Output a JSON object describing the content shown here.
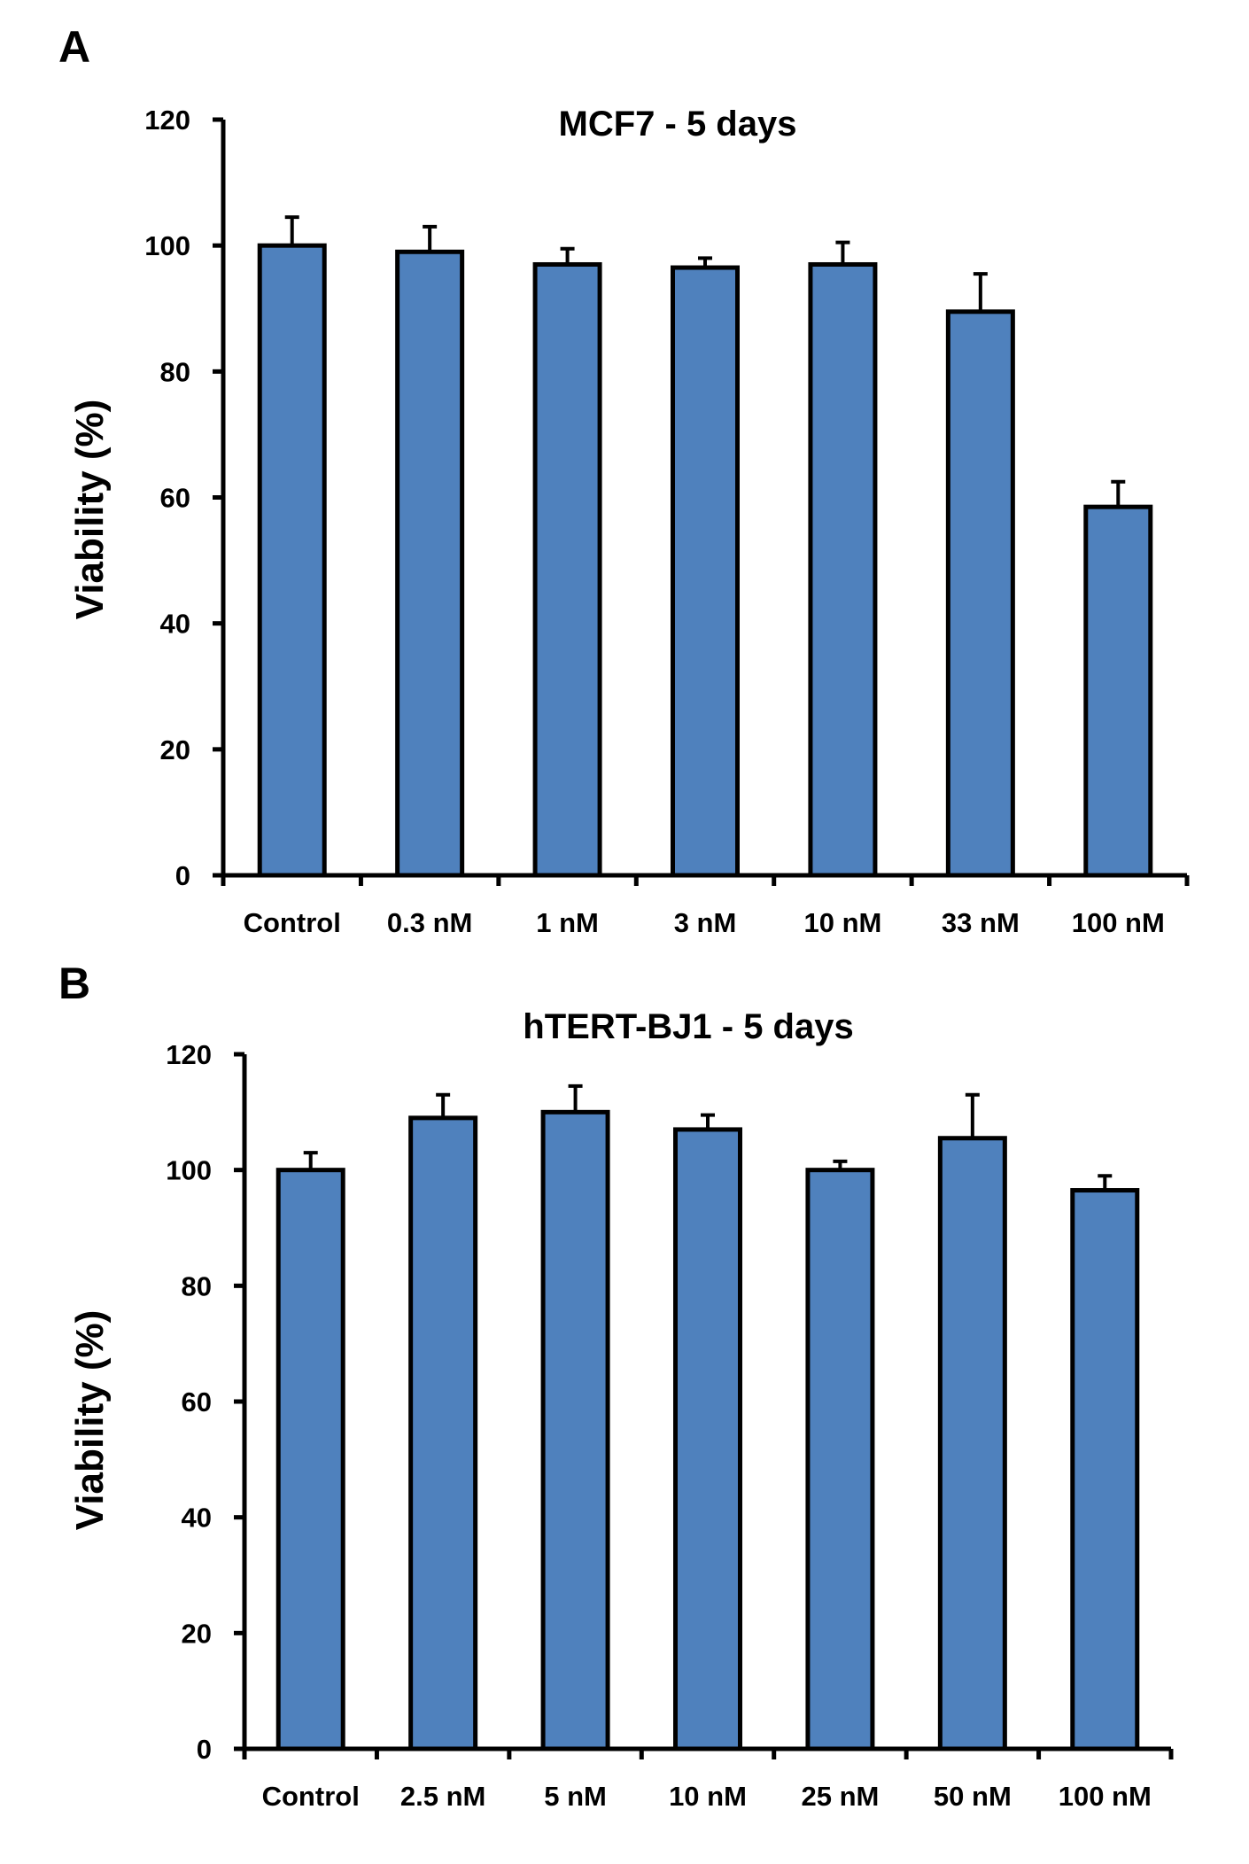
{
  "figure": {
    "panels": [
      {
        "letter": "A"
      },
      {
        "letter": "B"
      }
    ]
  },
  "style": {
    "bar_fill": "#4f81bd",
    "bar_stroke": "#000000",
    "axis_color": "#000000",
    "background": "#ffffff"
  },
  "chart_data": [
    {
      "type": "bar",
      "title": "MCF7 - 5 days",
      "xlabel": "",
      "ylabel": "Viability (%)",
      "ylim": [
        0,
        120
      ],
      "yticks": [
        0,
        20,
        40,
        60,
        80,
        100,
        120
      ],
      "categories": [
        "Control",
        "0.3 nM",
        "1 nM",
        "3 nM",
        "10 nM",
        "33 nM",
        "100 nM"
      ],
      "values": [
        100,
        99,
        97,
        96.5,
        97,
        89.5,
        58.5
      ],
      "error": [
        4.5,
        4,
        2.5,
        1.5,
        3.5,
        6,
        4
      ],
      "grid": false,
      "legend": "none"
    },
    {
      "type": "bar",
      "title": "hTERT-BJ1 - 5 days",
      "xlabel": "",
      "ylabel": "Viability (%)",
      "ylim": [
        0,
        120
      ],
      "yticks": [
        0,
        20,
        40,
        60,
        80,
        100,
        120
      ],
      "categories": [
        "Control",
        "2.5 nM",
        "5 nM",
        "10 nM",
        "25 nM",
        "50 nM",
        "100 nM"
      ],
      "values": [
        100,
        109,
        110,
        107,
        100,
        105.5,
        96.5
      ],
      "error": [
        3,
        4,
        4.5,
        2.5,
        1.5,
        7.5,
        2.5
      ],
      "grid": false,
      "legend": "none"
    }
  ]
}
